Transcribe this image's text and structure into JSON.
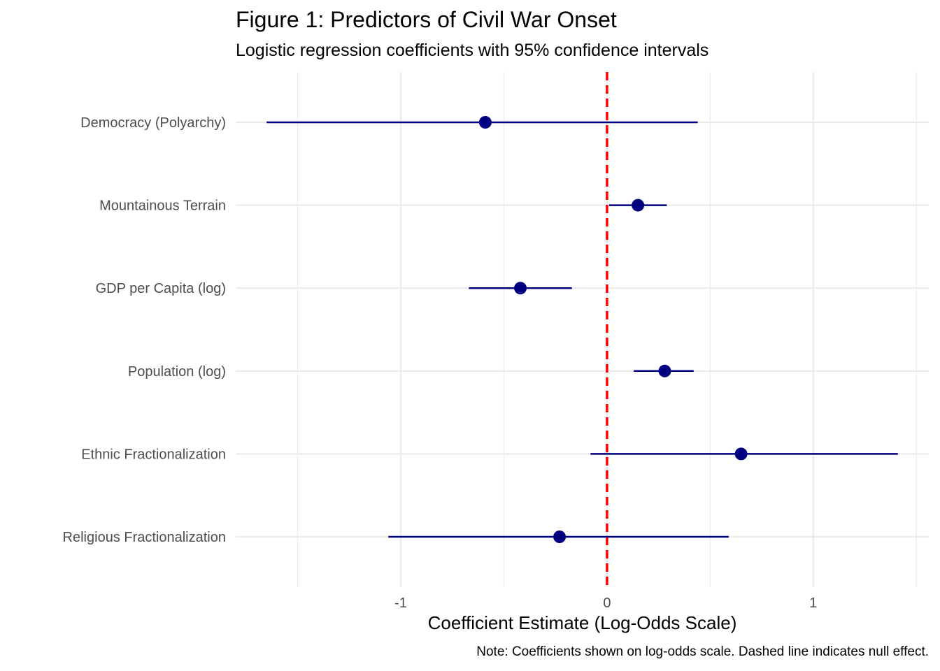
{
  "chart_data": {
    "type": "scatter",
    "subtype": "coefficient-plot",
    "title": "Figure 1: Predictors of Civil War Onset",
    "subtitle": "Logistic regression coefficients with 95% confidence intervals",
    "xlabel": "Coefficient Estimate (Log-Odds Scale)",
    "ylabel": "",
    "caption": "Note: Coefficients shown on log-odds scale. Dashed line indicates null effect.",
    "xlim": [
      -1.8,
      1.56
    ],
    "x_ticks": [
      -1,
      0,
      1
    ],
    "x_tick_labels": [
      "-1",
      "0",
      "1"
    ],
    "grid": true,
    "reference_line": {
      "x": 0,
      "style": "dashed",
      "color": "#ff0000"
    },
    "point_color": "#000080",
    "categories": [
      "Democracy (Polyarchy)",
      "Mountainous Terrain",
      "GDP per Capita (log)",
      "Population (log)",
      "Ethnic Fractionalization",
      "Religious Fractionalization"
    ],
    "estimates": [
      -0.59,
      0.15,
      -0.42,
      0.28,
      0.65,
      -0.23
    ],
    "ci_low": [
      -1.65,
      0.01,
      -0.67,
      0.13,
      -0.08,
      -1.06
    ],
    "ci_high": [
      0.44,
      0.29,
      -0.17,
      0.42,
      1.41,
      0.59
    ]
  }
}
